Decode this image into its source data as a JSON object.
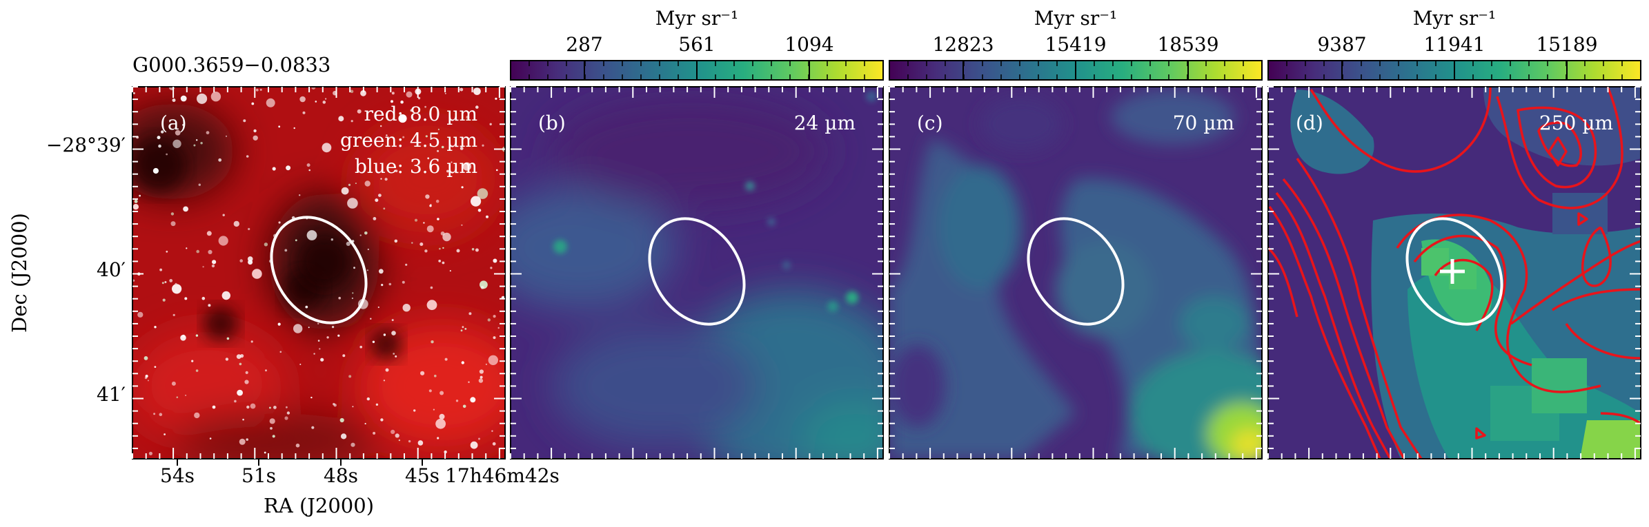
{
  "source_name": "G000.3659−0.0833",
  "axes": {
    "x_label": "RA (J2000)",
    "y_label": "Dec (J2000)",
    "x_ticks": [
      "54s",
      "51s",
      "48s",
      "45s",
      "17h46m42s"
    ],
    "y_ticks": [
      "−28°39′",
      "40′",
      "41′"
    ]
  },
  "panels": [
    {
      "tag": "(a)",
      "legend": [
        "red: 8.0 µm",
        "green: 4.5 µm",
        "blue: 3.6 µm"
      ]
    },
    {
      "tag": "(b)",
      "band": "24 µm",
      "colorbar": {
        "unit": "Myr sr⁻¹",
        "ticks": [
          "287",
          "561",
          "1094"
        ]
      }
    },
    {
      "tag": "(c)",
      "band": "70 µm",
      "colorbar": {
        "unit": "Myr sr⁻¹",
        "ticks": [
          "12823",
          "15419",
          "18539"
        ]
      }
    },
    {
      "tag": "(d)",
      "band": "250 µm",
      "colorbar": {
        "unit": "Myr sr⁻¹",
        "ticks": [
          "9387",
          "11941",
          "15189"
        ]
      }
    }
  ],
  "colors": {
    "colormap": [
      "#440154",
      "#472d7b",
      "#3b528b",
      "#2c728e",
      "#21918c",
      "#28ae80",
      "#5ec962",
      "#addc30",
      "#fde725"
    ],
    "ellipse": "#ffffff",
    "contour": "#e8141b",
    "rgb_base": "#b00f12"
  }
}
